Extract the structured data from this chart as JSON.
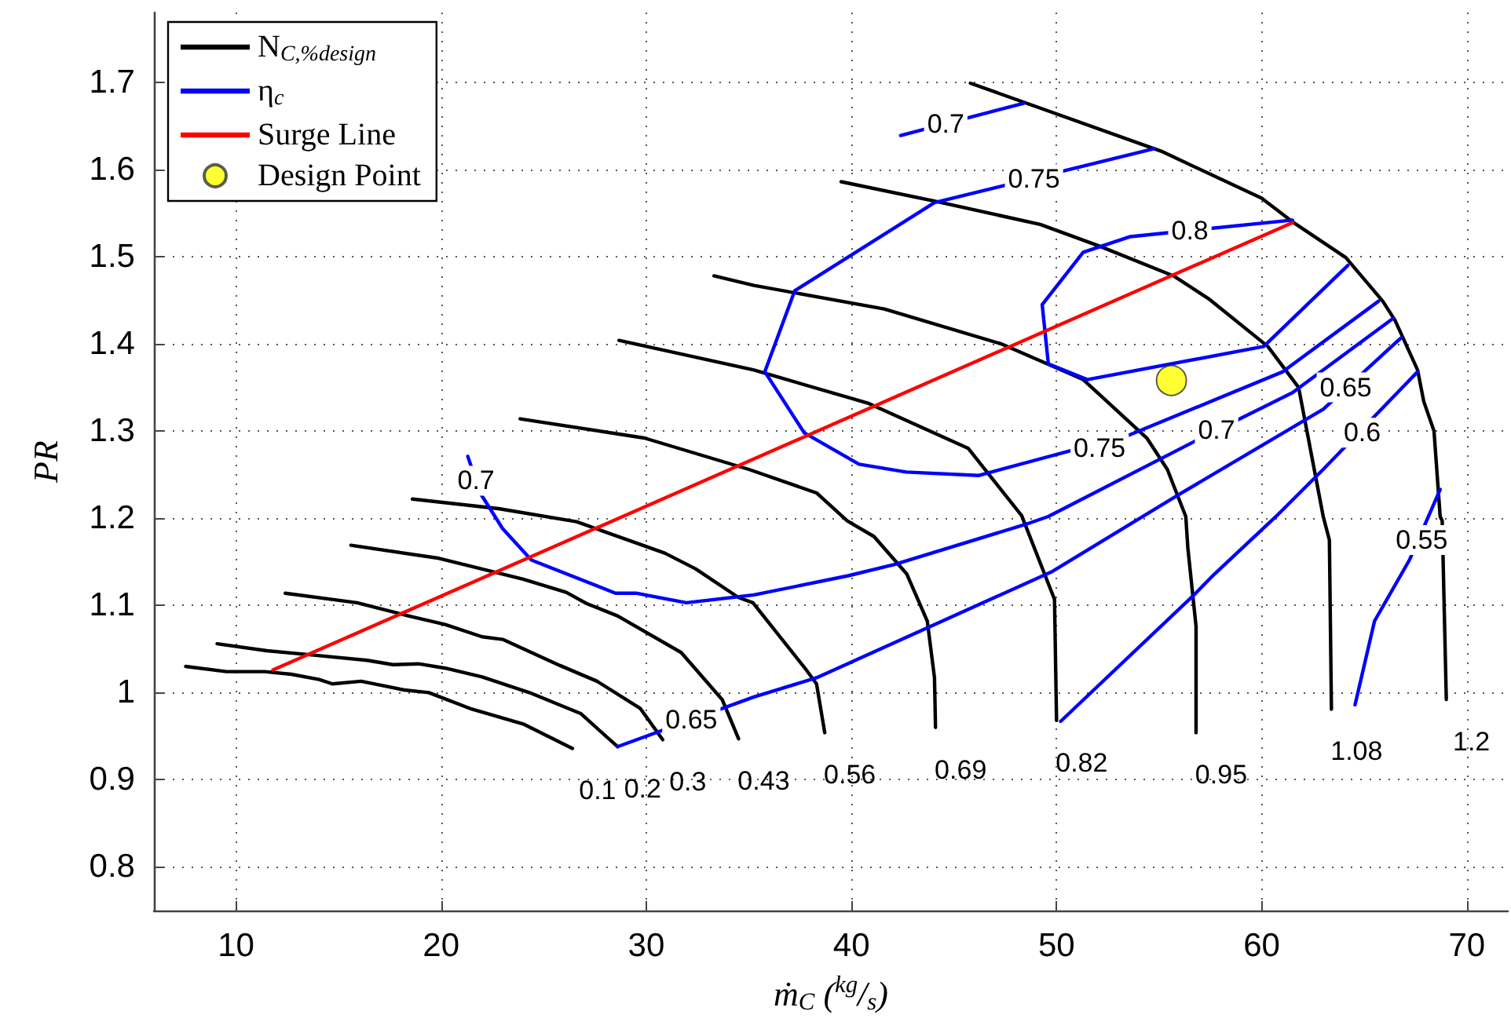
{
  "chart_data": {
    "type": "line",
    "xlabel": "ṁ$_{C}$ ($^{kg}$/$_{s}$)",
    "ylabel": "PR",
    "xlim": [
      6,
      72
    ],
    "ylim": [
      0.75,
      1.78
    ],
    "xticks": [
      10,
      20,
      30,
      40,
      50,
      60,
      70
    ],
    "yticks": [
      0.8,
      0.9,
      1,
      1.1,
      1.2,
      1.3,
      1.4,
      1.5,
      1.6,
      1.7
    ],
    "grid": true,
    "legend": "top left",
    "line_style": "solid",
    "marker": "none",
    "series": [
      {
        "name": "N$_{C,%design}$",
        "color": "#000000",
        "x": [
          7.55,
          9.54,
          11.4,
          12.7,
          14.05,
          14.7,
          16.1,
          18.2,
          19.4,
          21.5,
          24.0,
          26.4,
          null,
          9.08,
          11.5,
          13.8,
          16.4,
          17.65,
          18.9,
          20.2,
          22.0,
          24.3,
          26.8,
          28.6,
          null,
          12.4,
          15.9,
          18.4,
          20.2,
          22.0,
          23.0,
          25.8,
          27.6,
          29.7,
          30.8,
          null,
          15.6,
          19.9,
          24.0,
          26.1,
          27.1,
          28.6,
          31.7,
          33.7,
          34.5,
          null,
          18.6,
          22.8,
          26.6,
          30.9,
          32.4,
          34.5,
          35.2,
          37.8,
          38.3,
          38.7,
          null,
          23.85,
          29.9,
          35.0,
          38.3,
          39.8,
          41.1,
          42.7,
          43.7,
          44.05,
          44.1,
          null,
          28.67,
          35.25,
          40.8,
          45.7,
          48.3,
          49.9,
          50.0,
          null,
          33.3,
          35.25,
          41.6,
          47.3,
          51.3,
          54.4,
          55.4,
          56.3,
          56.4,
          56.8,
          56.8,
          null,
          39.5,
          44.0,
          49.2,
          52.1,
          55.7,
          57.4,
          60.3,
          61.8,
          63.0,
          63.3,
          63.4,
          null,
          45.8,
          55.1,
          60.0,
          61.5,
          64.1,
          65.9,
          66.5,
          67.6,
          67.9,
          68.4,
          68.7,
          68.8,
          69.0
        ],
        "values": [
          1.03,
          1.024,
          1.024,
          1.021,
          1.015,
          1.01,
          1.013,
          1.003,
          1.0,
          0.981,
          0.964,
          0.936,
          null,
          1.056,
          1.048,
          1.043,
          1.037,
          1.032,
          1.033,
          1.028,
          1.018,
          1.0,
          0.976,
          0.938,
          null,
          1.114,
          1.103,
          1.088,
          1.078,
          1.064,
          1.061,
          1.031,
          1.013,
          0.982,
          0.946,
          null,
          1.169,
          1.154,
          1.13,
          1.115,
          1.102,
          1.088,
          1.046,
          0.992,
          0.947,
          null,
          1.222,
          1.211,
          1.196,
          1.16,
          1.142,
          1.109,
          1.103,
          1.026,
          1.01,
          0.954,
          null,
          1.314,
          1.292,
          1.256,
          1.229,
          1.197,
          1.179,
          1.136,
          1.082,
          1.017,
          0.96,
          null,
          1.404,
          1.37,
          1.332,
          1.28,
          1.203,
          1.107,
          0.968,
          null,
          1.478,
          1.467,
          1.44,
          1.4,
          1.359,
          1.292,
          1.256,
          1.202,
          1.166,
          1.076,
          0.954,
          null,
          1.586,
          1.564,
          1.537,
          1.512,
          1.478,
          1.452,
          1.397,
          1.35,
          1.202,
          1.175,
          0.981,
          null,
          1.699,
          1.621,
          1.567,
          1.54,
          1.499,
          1.449,
          1.427,
          1.37,
          1.334,
          1.3,
          1.202,
          1.197,
          0.992
        ]
      },
      {
        "name": "η$_{c}$",
        "color": "#0000ff",
        "x": [
          42.4,
          48.4,
          null,
          54.76,
          44.05,
          37.24,
          35.78,
          37.7,
          40.37,
          42.67,
          46.19,
          53.61,
          61.03,
          65.7,
          null,
          61.5,
          53.6,
          51.3,
          49.3,
          49.6,
          51.5,
          60.1,
          64.2,
          null,
          21.3,
          21.9,
          23.0,
          24.4,
          28.5,
          29.5,
          31.96,
          35.25,
          39.84,
          42.1,
          48.5,
          49.6,
          56.8,
          61.5,
          66.4,
          null,
          28.6,
          35.25,
          38.3,
          49.8,
          56.1,
          63.0,
          66.8,
          null,
          50.2,
          56.7,
          57.7,
          60.7,
          63.0,
          67.6,
          null,
          64.55,
          65.5,
          67.2,
          68.7
        ],
        "values": [
          1.639,
          1.676,
          null,
          1.624,
          1.562,
          1.461,
          1.368,
          1.298,
          1.262,
          1.253,
          1.249,
          1.296,
          1.368,
          1.449,
          null,
          1.542,
          1.523,
          1.505,
          1.445,
          1.377,
          1.359,
          1.397,
          1.49,
          null,
          1.271,
          1.229,
          1.188,
          1.152,
          1.114,
          1.114,
          1.103,
          1.112,
          1.134,
          1.147,
          1.193,
          1.202,
          1.289,
          1.344,
          1.429,
          null,
          0.938,
          0.995,
          1.017,
          1.139,
          1.229,
          1.325,
          1.407,
          null,
          0.967,
          1.112,
          1.136,
          1.202,
          1.256,
          1.368,
          null,
          0.986,
          1.082,
          1.152,
          1.233
        ]
      },
      {
        "name": "Surge Line",
        "color": "#ff0000",
        "x": [
          11.8,
          61.5
        ],
        "values": [
          1.026,
          1.539
        ]
      },
      {
        "name": "Design Point",
        "type": "scatter",
        "color": "#ffff00",
        "marker": "circle",
        "x": [
          55.6
        ],
        "values": [
          1.358
        ]
      }
    ],
    "annotations": [
      {
        "text": "0.1",
        "x": 26.4,
        "y": 0.936
      },
      {
        "text": "0.2",
        "x": 28.6,
        "y": 0.938
      },
      {
        "text": "0.3",
        "x": 30.8,
        "y": 0.946
      },
      {
        "text": "0.43",
        "x": 34.5,
        "y": 0.947
      },
      {
        "text": "0.56",
        "x": 38.7,
        "y": 0.954
      },
      {
        "text": "0.69",
        "x": 44.1,
        "y": 0.96
      },
      {
        "text": "0.82",
        "x": 50.0,
        "y": 0.968
      },
      {
        "text": "0.95",
        "x": 56.8,
        "y": 0.954
      },
      {
        "text": "1.08",
        "x": 63.4,
        "y": 0.981
      },
      {
        "text": "1.2",
        "x": 69.0,
        "y": 0.992
      },
      {
        "text": "0.7",
        "x": 44.6,
        "y": 1.652
      },
      {
        "text": "0.75",
        "x": 48.9,
        "y": 1.589
      },
      {
        "text": "0.8",
        "x": 56.5,
        "y": 1.53
      },
      {
        "text": "0.75",
        "x": 52.1,
        "y": 1.28
      },
      {
        "text": "0.7",
        "x": 57.8,
        "y": 1.301
      },
      {
        "text": "0.65",
        "x": 64.1,
        "y": 1.35
      },
      {
        "text": "0.6",
        "x": 64.9,
        "y": 1.298
      },
      {
        "text": "0.55",
        "x": 67.8,
        "y": 1.175
      },
      {
        "text": "0.7",
        "x": 21.7,
        "y": 1.243
      },
      {
        "text": "0.65",
        "x": 32.2,
        "y": 0.969
      }
    ]
  }
}
